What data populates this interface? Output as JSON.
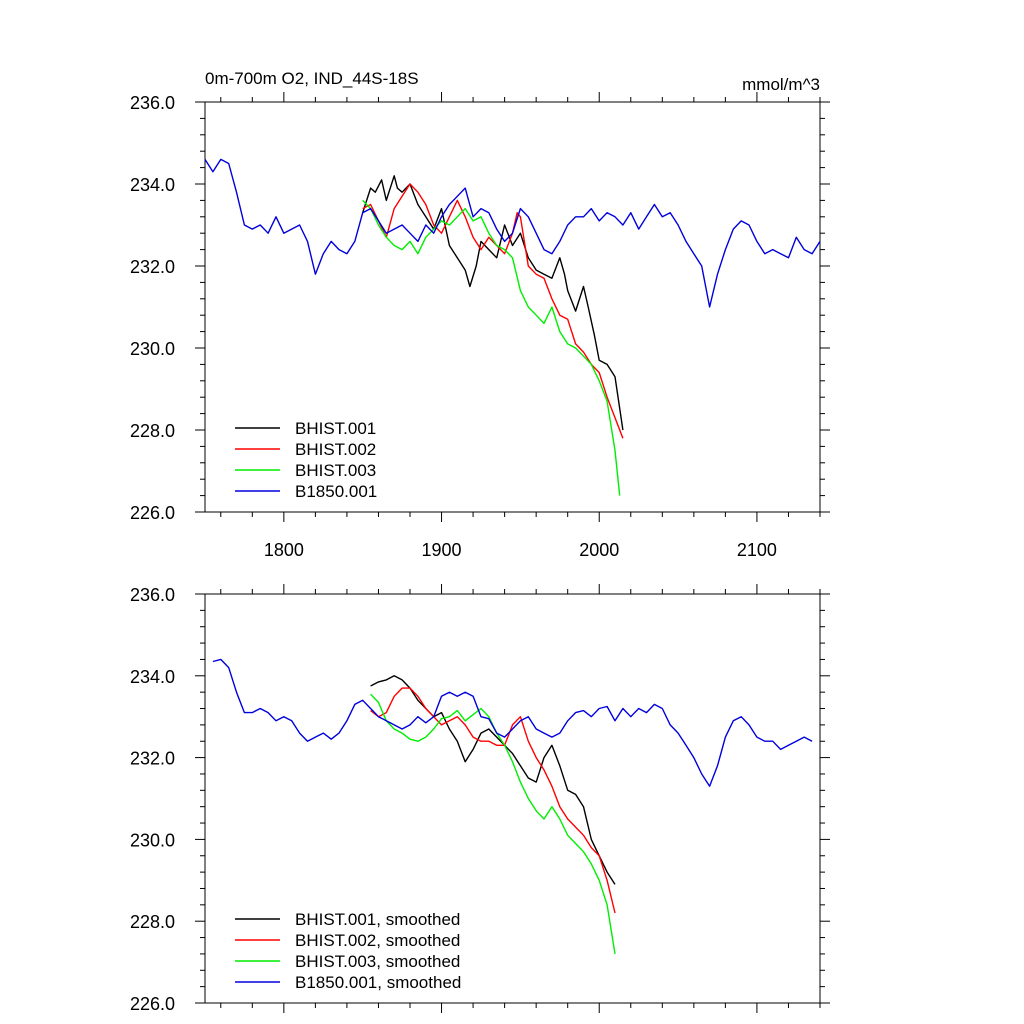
{
  "chart_data": [
    {
      "type": "line",
      "title": "0m-700m O2, IND_44S-18S",
      "units": "mmol/m^3",
      "xlim": [
        1750,
        2140
      ],
      "ylim": [
        226,
        236
      ],
      "xticks": [
        1800,
        1900,
        2000,
        2100
      ],
      "xtick_labels": [
        "1800",
        "1900",
        "2000",
        "2100"
      ],
      "yticks": [
        226,
        228,
        230,
        232,
        234,
        236
      ],
      "ytick_labels": [
        "226.0",
        "228.0",
        "230.0",
        "232.0",
        "234.0",
        "236.0"
      ],
      "legend": "bottom-left",
      "grid": false,
      "series": [
        {
          "name": "BHIST.001",
          "color": "#000000",
          "x": [
            1850,
            1855,
            1858,
            1862,
            1865,
            1870,
            1872,
            1875,
            1880,
            1885,
            1890,
            1895,
            1900,
            1905,
            1910,
            1915,
            1918,
            1922,
            1925,
            1930,
            1935,
            1940,
            1945,
            1950,
            1955,
            1960,
            1965,
            1970,
            1975,
            1978,
            1980,
            1985,
            1990,
            1993,
            1997,
            2000,
            2005,
            2010,
            2015
          ],
          "y": [
            233.3,
            233.9,
            233.8,
            234.1,
            233.6,
            234.2,
            233.9,
            233.8,
            234.0,
            233.5,
            233.2,
            232.9,
            233.4,
            232.5,
            232.2,
            231.9,
            231.5,
            232.0,
            232.6,
            232.4,
            232.2,
            233.0,
            232.5,
            232.8,
            232.2,
            231.9,
            231.8,
            231.7,
            232.2,
            231.8,
            231.4,
            230.9,
            231.5,
            231.0,
            230.3,
            229.7,
            229.6,
            229.3,
            228.0
          ]
        },
        {
          "name": "BHIST.002",
          "color": "#ff0000",
          "x": [
            1850,
            1855,
            1860,
            1865,
            1870,
            1875,
            1880,
            1885,
            1890,
            1895,
            1900,
            1905,
            1910,
            1915,
            1920,
            1925,
            1930,
            1935,
            1940,
            1945,
            1948,
            1950,
            1955,
            1960,
            1965,
            1970,
            1975,
            1980,
            1985,
            1990,
            1995,
            2000,
            2005,
            2010,
            2015
          ],
          "y": [
            233.4,
            233.5,
            233.1,
            232.7,
            233.4,
            233.7,
            234.0,
            233.8,
            233.5,
            233.0,
            232.8,
            233.2,
            233.6,
            233.2,
            232.7,
            232.4,
            232.7,
            232.5,
            232.3,
            232.8,
            233.3,
            233.2,
            232.0,
            231.8,
            231.7,
            231.2,
            230.8,
            230.7,
            230.1,
            229.9,
            229.6,
            229.4,
            228.8,
            228.3,
            227.8
          ]
        },
        {
          "name": "BHIST.003",
          "color": "#00ee00",
          "x": [
            1850,
            1855,
            1860,
            1865,
            1870,
            1875,
            1880,
            1885,
            1890,
            1895,
            1900,
            1905,
            1910,
            1915,
            1920,
            1925,
            1930,
            1935,
            1940,
            1945,
            1950,
            1955,
            1960,
            1965,
            1970,
            1975,
            1980,
            1985,
            1990,
            1995,
            2000,
            2005,
            2010,
            2013
          ],
          "y": [
            233.6,
            233.4,
            233.0,
            232.7,
            232.5,
            232.4,
            232.6,
            232.3,
            232.7,
            232.9,
            233.1,
            233.0,
            233.2,
            233.4,
            233.1,
            233.2,
            232.8,
            232.5,
            232.4,
            232.2,
            231.4,
            231.0,
            230.8,
            230.6,
            231.0,
            230.4,
            230.1,
            230.0,
            229.8,
            229.6,
            229.2,
            228.7,
            227.5,
            226.4
          ]
        },
        {
          "name": "B1850.001",
          "color": "#0000dd",
          "x": [
            1750,
            1755,
            1760,
            1765,
            1770,
            1775,
            1780,
            1785,
            1790,
            1795,
            1800,
            1805,
            1810,
            1815,
            1820,
            1825,
            1830,
            1835,
            1840,
            1845,
            1850,
            1855,
            1860,
            1865,
            1870,
            1875,
            1880,
            1885,
            1890,
            1895,
            1900,
            1905,
            1910,
            1915,
            1920,
            1925,
            1930,
            1935,
            1940,
            1945,
            1950,
            1955,
            1960,
            1965,
            1970,
            1975,
            1980,
            1985,
            1990,
            1995,
            2000,
            2005,
            2010,
            2015,
            2020,
            2025,
            2030,
            2035,
            2040,
            2045,
            2050,
            2055,
            2060,
            2065,
            2070,
            2075,
            2080,
            2085,
            2090,
            2095,
            2100,
            2105,
            2110,
            2115,
            2120,
            2125,
            2130,
            2135,
            2140
          ],
          "y": [
            234.6,
            234.3,
            234.6,
            234.5,
            233.8,
            233.0,
            232.9,
            233.0,
            232.8,
            233.2,
            232.8,
            232.9,
            233.0,
            232.6,
            231.8,
            232.3,
            232.6,
            232.4,
            232.3,
            232.6,
            233.3,
            233.4,
            233.1,
            232.8,
            232.9,
            233.0,
            232.8,
            232.6,
            233.0,
            232.8,
            233.2,
            233.5,
            233.7,
            233.9,
            233.2,
            233.4,
            233.3,
            232.9,
            232.6,
            232.8,
            233.4,
            233.2,
            232.8,
            232.4,
            232.3,
            232.6,
            233.0,
            233.2,
            233.2,
            233.4,
            233.1,
            233.3,
            233.2,
            233.0,
            233.3,
            232.9,
            233.2,
            233.5,
            233.2,
            233.3,
            233.0,
            232.6,
            232.3,
            232.0,
            231.0,
            231.8,
            232.4,
            232.9,
            233.1,
            233.0,
            232.6,
            232.3,
            232.4,
            232.3,
            232.2,
            232.7,
            232.4,
            232.3,
            232.6
          ]
        }
      ]
    },
    {
      "type": "line",
      "xlim": [
        1750,
        2140
      ],
      "ylim": [
        226,
        236
      ],
      "xticks": [
        1800,
        1900,
        2000,
        2100
      ],
      "yticks": [
        226,
        228,
        230,
        232,
        234,
        236
      ],
      "ytick_labels": [
        "226.0",
        "228.0",
        "230.0",
        "232.0",
        "234.0",
        "236.0"
      ],
      "legend": "bottom-left",
      "grid": false,
      "series": [
        {
          "name": "BHIST.001, smoothed",
          "color": "#000000",
          "x": [
            1855,
            1860,
            1865,
            1870,
            1875,
            1880,
            1885,
            1890,
            1895,
            1900,
            1905,
            1910,
            1915,
            1920,
            1925,
            1930,
            1935,
            1940,
            1945,
            1950,
            1955,
            1960,
            1965,
            1970,
            1975,
            1980,
            1985,
            1990,
            1995,
            2000,
            2005,
            2010
          ],
          "y": [
            233.75,
            233.85,
            233.9,
            234.0,
            233.9,
            233.7,
            233.4,
            233.2,
            233.0,
            233.1,
            232.7,
            232.4,
            231.9,
            232.2,
            232.6,
            232.7,
            232.5,
            232.3,
            232.1,
            231.8,
            231.5,
            231.4,
            232.0,
            232.3,
            231.8,
            231.2,
            231.1,
            230.8,
            230.0,
            229.6,
            229.2,
            228.9
          ]
        },
        {
          "name": "BHIST.002, smoothed",
          "color": "#ff0000",
          "x": [
            1855,
            1860,
            1865,
            1870,
            1875,
            1880,
            1885,
            1890,
            1895,
            1900,
            1905,
            1910,
            1915,
            1920,
            1925,
            1930,
            1935,
            1940,
            1945,
            1950,
            1955,
            1960,
            1965,
            1970,
            1975,
            1980,
            1985,
            1990,
            1995,
            2000,
            2005,
            2010
          ],
          "y": [
            233.15,
            233.0,
            233.1,
            233.5,
            233.7,
            233.7,
            233.5,
            233.2,
            233.0,
            232.8,
            232.9,
            233.0,
            232.8,
            232.5,
            232.4,
            232.4,
            232.3,
            232.3,
            232.8,
            233.0,
            232.4,
            232.0,
            231.7,
            231.3,
            230.8,
            230.5,
            230.3,
            230.1,
            229.8,
            229.6,
            229.0,
            228.2
          ]
        },
        {
          "name": "BHIST.003, smoothed",
          "color": "#00ee00",
          "x": [
            1855,
            1860,
            1865,
            1870,
            1875,
            1880,
            1885,
            1890,
            1895,
            1900,
            1905,
            1910,
            1915,
            1920,
            1925,
            1930,
            1935,
            1940,
            1945,
            1950,
            1955,
            1960,
            1965,
            1970,
            1975,
            1980,
            1985,
            1990,
            1995,
            2000,
            2005,
            2010
          ],
          "y": [
            233.55,
            233.35,
            232.9,
            232.7,
            232.6,
            232.45,
            232.4,
            232.5,
            232.7,
            232.95,
            233.0,
            233.15,
            232.9,
            233.05,
            233.2,
            233.0,
            232.6,
            232.3,
            231.9,
            231.4,
            231.0,
            230.7,
            230.5,
            230.8,
            230.5,
            230.1,
            229.9,
            229.7,
            229.4,
            229.0,
            228.4,
            227.2
          ]
        },
        {
          "name": "B1850.001, smoothed",
          "color": "#0000dd",
          "x": [
            1755,
            1760,
            1765,
            1770,
            1775,
            1780,
            1785,
            1790,
            1795,
            1800,
            1805,
            1810,
            1815,
            1820,
            1825,
            1830,
            1835,
            1840,
            1845,
            1850,
            1855,
            1860,
            1865,
            1870,
            1875,
            1880,
            1885,
            1890,
            1895,
            1900,
            1905,
            1910,
            1915,
            1920,
            1925,
            1930,
            1935,
            1940,
            1945,
            1950,
            1955,
            1960,
            1965,
            1970,
            1975,
            1980,
            1985,
            1990,
            1995,
            2000,
            2005,
            2010,
            2015,
            2020,
            2025,
            2030,
            2035,
            2040,
            2045,
            2050,
            2055,
            2060,
            2065,
            2070,
            2075,
            2080,
            2085,
            2090,
            2095,
            2100,
            2105,
            2110,
            2115,
            2120,
            2125,
            2130,
            2135
          ],
          "y": [
            234.35,
            234.4,
            234.2,
            233.6,
            233.1,
            233.1,
            233.2,
            233.1,
            232.9,
            233.0,
            232.9,
            232.6,
            232.4,
            232.5,
            232.6,
            232.45,
            232.6,
            232.9,
            233.3,
            233.4,
            233.2,
            233.0,
            232.9,
            232.8,
            232.7,
            232.8,
            233.0,
            232.85,
            233.0,
            233.5,
            233.6,
            233.5,
            233.6,
            233.5,
            233.0,
            232.95,
            232.6,
            232.5,
            232.7,
            232.9,
            233.0,
            232.7,
            232.6,
            232.5,
            232.6,
            232.9,
            233.1,
            233.15,
            233.0,
            233.2,
            233.25,
            232.9,
            233.2,
            233.0,
            233.2,
            233.1,
            233.3,
            233.2,
            232.8,
            232.6,
            232.3,
            232.0,
            231.6,
            231.3,
            231.8,
            232.5,
            232.9,
            233.0,
            232.8,
            232.5,
            232.4,
            232.4,
            232.2,
            232.3,
            232.4,
            232.5,
            232.4
          ]
        }
      ]
    }
  ]
}
